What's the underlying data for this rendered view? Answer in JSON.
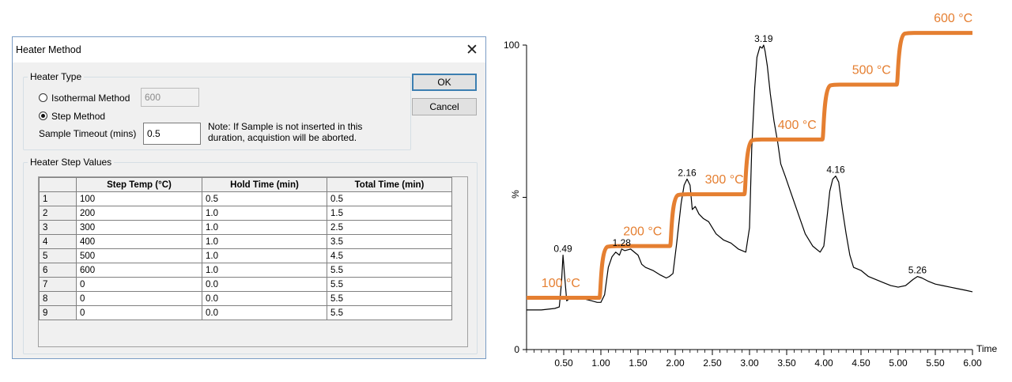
{
  "dialog": {
    "title": "Heater Method",
    "heater_type": {
      "group_label": "Heater Type",
      "isothermal_label": "Isothermal Method",
      "isothermal_value": "600",
      "step_label": "Step Method",
      "selected": "Step Method",
      "timeout_label": "Sample Timeout (mins)",
      "timeout_value": "0.5",
      "note": "Note: If Sample is not inserted in this duration, acquistion will be aborted."
    },
    "ok_label": "OK",
    "cancel_label": "Cancel",
    "step_values": {
      "group_label": "Heater Step Values",
      "columns": [
        "Step Temp (°C)",
        "Hold Time (min)",
        "Total Time (min)"
      ],
      "rows": [
        [
          "1",
          "100",
          "0.5",
          "0.5"
        ],
        [
          "2",
          "200",
          "1.0",
          "1.5"
        ],
        [
          "3",
          "300",
          "1.0",
          "2.5"
        ],
        [
          "4",
          "400",
          "1.0",
          "3.5"
        ],
        [
          "5",
          "500",
          "1.0",
          "4.5"
        ],
        [
          "6",
          "600",
          "1.0",
          "5.5"
        ],
        [
          "7",
          "0",
          "0.0",
          "5.5"
        ],
        [
          "8",
          "0",
          "0.0",
          "5.5"
        ],
        [
          "9",
          "0",
          "0.0",
          "5.5"
        ]
      ]
    }
  },
  "chart_data": {
    "type": "line",
    "xlabel": "Time",
    "ylabel": "%",
    "xlim": [
      0,
      6.0
    ],
    "ylim": [
      0,
      100
    ],
    "x_ticks": [
      "0.50",
      "1.00",
      "1.50",
      "2.00",
      "2.50",
      "3.00",
      "3.50",
      "4.00",
      "4.50",
      "5.00",
      "5.50",
      "6.00"
    ],
    "y_ticks": [
      "0",
      "%",
      "100"
    ],
    "colors": {
      "signal": "#000000",
      "temperature_steps": "#e57f31"
    },
    "signal": {
      "x": [
        0.0,
        0.2,
        0.38,
        0.44,
        0.47,
        0.49,
        0.51,
        0.54,
        0.58,
        0.63,
        0.68,
        0.73,
        0.8,
        0.88,
        0.95,
        1.0,
        1.05,
        1.1,
        1.15,
        1.2,
        1.25,
        1.28,
        1.32,
        1.4,
        1.5,
        1.55,
        1.6,
        1.7,
        1.8,
        1.88,
        1.92,
        1.97,
        2.02,
        2.08,
        2.12,
        2.16,
        2.2,
        2.23,
        2.27,
        2.32,
        2.38,
        2.45,
        2.55,
        2.65,
        2.75,
        2.85,
        2.95,
        3.0,
        3.03,
        3.07,
        3.1,
        3.14,
        3.17,
        3.19,
        3.21,
        3.24,
        3.28,
        3.33,
        3.38,
        3.42,
        3.48,
        3.55,
        3.65,
        3.75,
        3.85,
        3.95,
        4.0,
        4.05,
        4.08,
        4.12,
        4.16,
        4.2,
        4.25,
        4.3,
        4.35,
        4.4,
        4.5,
        4.6,
        4.7,
        4.8,
        4.9,
        5.0,
        5.1,
        5.2,
        5.26,
        5.32,
        5.4,
        5.5,
        5.6,
        5.7,
        5.8,
        5.9,
        6.0
      ],
      "y": [
        13,
        13,
        13.5,
        14,
        22,
        31,
        25,
        16,
        16.8,
        17,
        16.5,
        17.5,
        16.5,
        16,
        15.5,
        15.5,
        18,
        27,
        30.5,
        32,
        31,
        33,
        32.5,
        33,
        31,
        28,
        27,
        26,
        24.5,
        23.5,
        24,
        25,
        35,
        48,
        54,
        56,
        54,
        46,
        47,
        44.5,
        43,
        42,
        38,
        36,
        35,
        33,
        32,
        40,
        66,
        86,
        96,
        99.5,
        99,
        100,
        98,
        93,
        84,
        75,
        68,
        61,
        57,
        52,
        45,
        38,
        34,
        32,
        34,
        45,
        52,
        56,
        57,
        55,
        46,
        38,
        31,
        27,
        26,
        24,
        23,
        22,
        21,
        20.5,
        21,
        23,
        24,
        23.5,
        22.5,
        21.5,
        21,
        20.5,
        20,
        19.5,
        19
      ]
    },
    "temperature_steps": {
      "labels": [
        "100 °C",
        "200 °C",
        "300 °C",
        "400 °C",
        "500 °C",
        "600 °C"
      ],
      "level": [
        17,
        34,
        51,
        69,
        87,
        104
      ],
      "rise_start": [
        0.98,
        1.93,
        2.93,
        3.98,
        4.98
      ]
    },
    "peak_labels": [
      {
        "x": 0.49,
        "y": 31,
        "text": "0.49"
      },
      {
        "x": 1.28,
        "y": 33,
        "text": "1.28"
      },
      {
        "x": 2.16,
        "y": 56,
        "text": "2.16"
      },
      {
        "x": 3.19,
        "y": 100,
        "text": "3.19"
      },
      {
        "x": 4.16,
        "y": 57,
        "text": "4.16"
      },
      {
        "x": 5.26,
        "y": 24,
        "text": "5.26"
      }
    ]
  }
}
